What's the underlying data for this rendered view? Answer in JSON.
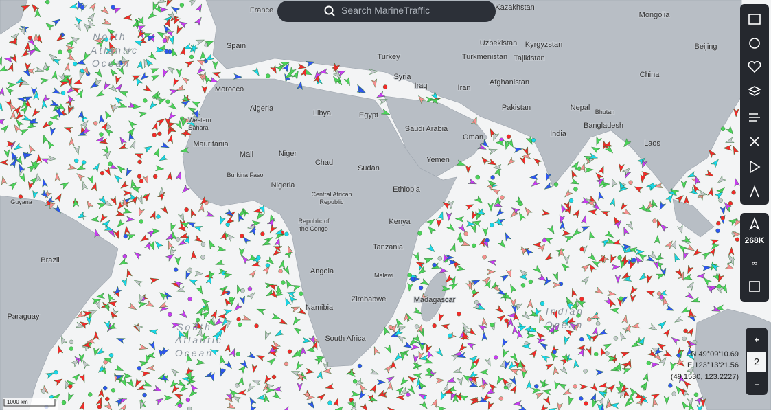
{
  "search": {
    "placeholder": "Search MarineTraffic"
  },
  "labels": [
    "France",
    "Spain",
    "Morocco",
    "Algeria",
    "Libya",
    "Egypt",
    "Turkey",
    "Syria",
    "Iraq",
    "Iran",
    "Saudi Arabia",
    "Oman",
    "Yemen",
    "Kazakhstan",
    "Uzbekistan",
    "Kyrgyzstan",
    "Turkmenistan",
    "Tajikistan",
    "Afghanistan",
    "Pakistan",
    "India",
    "Nepal",
    "Bhutan",
    "Bangladesh",
    "China",
    "Mongolia",
    "Beijing",
    "Laos",
    "Mauritania",
    "Mali",
    "Niger",
    "Chad",
    "Sudan",
    "Ethiopia",
    "Nigeria",
    "Burkina Faso",
    "Central African",
    "Republic",
    "Republic of",
    "the Congo",
    "Kenya",
    "Tanzania",
    "Angola",
    "Malawi",
    "Zimbabwe",
    "Namibia",
    "South Africa",
    "Madagascar",
    "Brazil",
    "Paraguay",
    "Guyana",
    "Western",
    "Sahara"
  ],
  "oceans": [
    "North",
    "Atlantic",
    "Ocean",
    "South",
    "Atlantic",
    "Ocean",
    "Indian",
    "Ocean"
  ],
  "toolbar": {
    "count": "268K",
    "loop": "∞"
  },
  "zoom": {
    "plus": "+",
    "level": "2",
    "minus": "−"
  },
  "coordinates": {
    "lat": "N 49°09'10.69",
    "lon": "E 123°13'21.56",
    "decimal": "(49.1530, 123.2227)"
  },
  "scale": "1000 km"
}
